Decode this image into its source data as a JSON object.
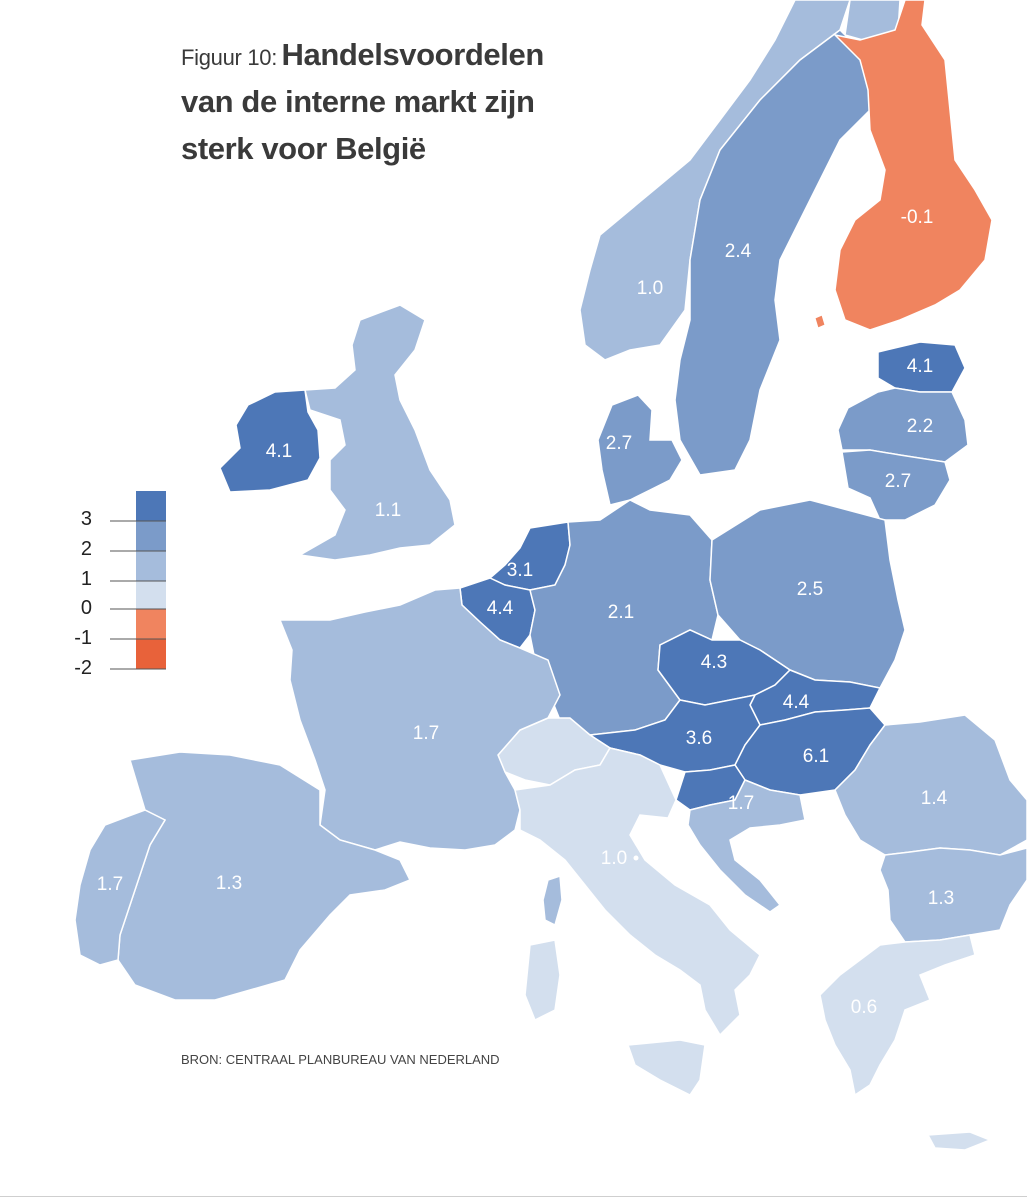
{
  "title": {
    "prefix": "Figuur 10:",
    "line1": "Handelsvoordelen",
    "line2": "van de interne markt zijn",
    "line3": "sterk voor België"
  },
  "source": "BRON: CENTRAAL PLANBUREAU VAN NEDERLAND",
  "colors": {
    "lt1": "#d3dfee",
    "c1to2": "#a5bcdc",
    "c2to3": "#7b9bc9",
    "gt3": "#4d77b7",
    "neg1to0": "#f0845f",
    "lt_neg1": "#e8623a",
    "background": "#ffffff"
  },
  "legend": {
    "ticks": [
      "3",
      "2",
      "1",
      "0",
      "-1",
      "-2"
    ],
    "bins": [
      {
        "range": "> 3",
        "color": "#4d77b7"
      },
      {
        "range": "2 – 3",
        "color": "#7b9bc9"
      },
      {
        "range": "1 – 2",
        "color": "#a5bcdc"
      },
      {
        "range": "0 – 1",
        "color": "#d3dfee"
      },
      {
        "range": "-1 – 0",
        "color": "#f0845f"
      },
      {
        "range": "-2 – -1",
        "color": "#e8623a"
      }
    ]
  },
  "chart_data": {
    "type": "choropleth",
    "values": [
      {
        "value": "-0.1",
        "v": -0.1
      },
      {
        "value": "2.4",
        "v": 2.4
      },
      {
        "value": "1.0",
        "v": 1.0
      },
      {
        "value": "4.1",
        "v": 4.1
      },
      {
        "value": "2.2",
        "v": 2.2
      },
      {
        "value": "2.7",
        "v": 2.7
      },
      {
        "value": "4.1",
        "v": 4.1
      },
      {
        "value": "1.1",
        "v": 1.1
      },
      {
        "value": "2.7",
        "v": 2.7
      },
      {
        "value": "3.1",
        "v": 3.1
      },
      {
        "value": "4.4",
        "v": 4.4
      },
      {
        "value": "2.1",
        "v": 2.1
      },
      {
        "value": "2.5",
        "v": 2.5
      },
      {
        "value": "4.3",
        "v": 4.3
      },
      {
        "value": "4.4",
        "v": 4.4
      },
      {
        "value": "3.6",
        "v": 3.6
      },
      {
        "value": "6.1",
        "v": 6.1
      },
      {
        "value": "1.7",
        "v": 1.7
      },
      {
        "value": "1.7",
        "v": 1.7
      },
      {
        "value": "1.4",
        "v": 1.4
      },
      {
        "value": "1.0",
        "v": 1.0
      },
      {
        "value": "1.7",
        "v": 1.7
      },
      {
        "value": "1.3",
        "v": 1.3
      },
      {
        "value": "1.3",
        "v": 1.3
      },
      {
        "value": "0.6",
        "v": 0.6
      }
    ]
  }
}
